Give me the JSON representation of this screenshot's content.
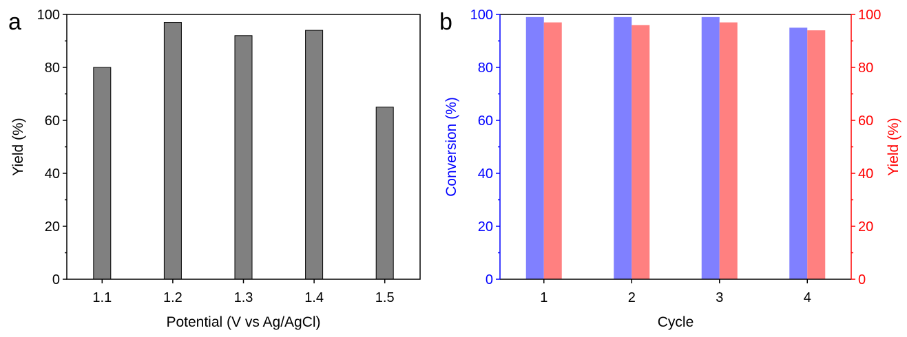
{
  "chart_data": [
    {
      "panel_label": "a",
      "type": "bar",
      "categories": [
        "1.1",
        "1.2",
        "1.3",
        "1.4",
        "1.5"
      ],
      "values": [
        80,
        97,
        92,
        94,
        65
      ],
      "xlabel": "Potential (V vs Ag/AgCl)",
      "ylabel": "Yield (%)",
      "ylim": [
        0,
        100
      ],
      "yticks": [
        "0",
        "20",
        "40",
        "60",
        "80",
        "100"
      ],
      "bar_color": "#808080",
      "grid": false
    },
    {
      "panel_label": "b",
      "type": "bar",
      "categories": [
        "1",
        "2",
        "3",
        "4"
      ],
      "xlabel": "Cycle",
      "ylabel_left": "Conversion (%)",
      "ylabel_right": "Yield (%)",
      "ylim": [
        0,
        100
      ],
      "yticks": [
        "0",
        "20",
        "40",
        "60",
        "80",
        "100"
      ],
      "left_axis_color": "#0000FF",
      "right_axis_color": "#FF0000",
      "series": [
        {
          "name": "Conversion (%)",
          "axis": "left",
          "color": "#8080FF",
          "values": [
            99,
            99,
            99,
            95
          ]
        },
        {
          "name": "Yield (%)",
          "axis": "right",
          "color": "#FF8080",
          "values": [
            97,
            96,
            97,
            94
          ]
        }
      ],
      "grid": false
    }
  ]
}
